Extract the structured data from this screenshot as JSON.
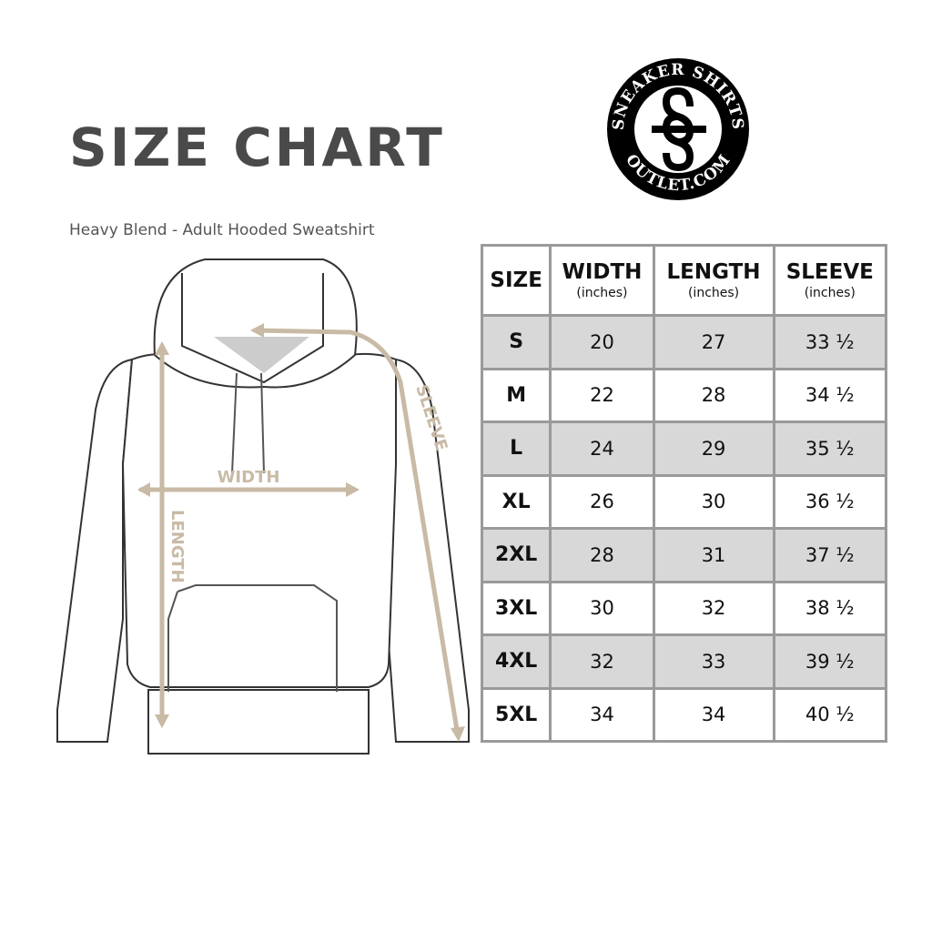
{
  "header": {
    "title": "SIZE CHART",
    "subtitle": "Heavy Blend - Adult Hooded Sweatshirt"
  },
  "logo": {
    "text_top": "SNEAKER SHIRTS",
    "text_bottom": "OUTLET.COM",
    "monogram": "SS"
  },
  "diagram": {
    "labels": {
      "width": "WIDTH",
      "length": "LENGTH",
      "sleeve": "SLEEVE"
    },
    "accent_color": "#c8baa5"
  },
  "table": {
    "columns": [
      {
        "label": "SIZE",
        "unit": ""
      },
      {
        "label": "WIDTH",
        "unit": "(inches)"
      },
      {
        "label": "LENGTH",
        "unit": "(inches)"
      },
      {
        "label": "SLEEVE",
        "unit": "(inches)"
      }
    ],
    "rows": [
      [
        "S",
        "20",
        "27",
        "33 ½"
      ],
      [
        "M",
        "22",
        "28",
        "34 ½"
      ],
      [
        "L",
        "24",
        "29",
        "35 ½"
      ],
      [
        "XL",
        "26",
        "30",
        "36 ½"
      ],
      [
        "2XL",
        "28",
        "31",
        "37 ½"
      ],
      [
        "3XL",
        "30",
        "32",
        "38 ½"
      ],
      [
        "4XL",
        "32",
        "33",
        "39 ½"
      ],
      [
        "5XL",
        "34",
        "34",
        "40 ½"
      ]
    ]
  }
}
